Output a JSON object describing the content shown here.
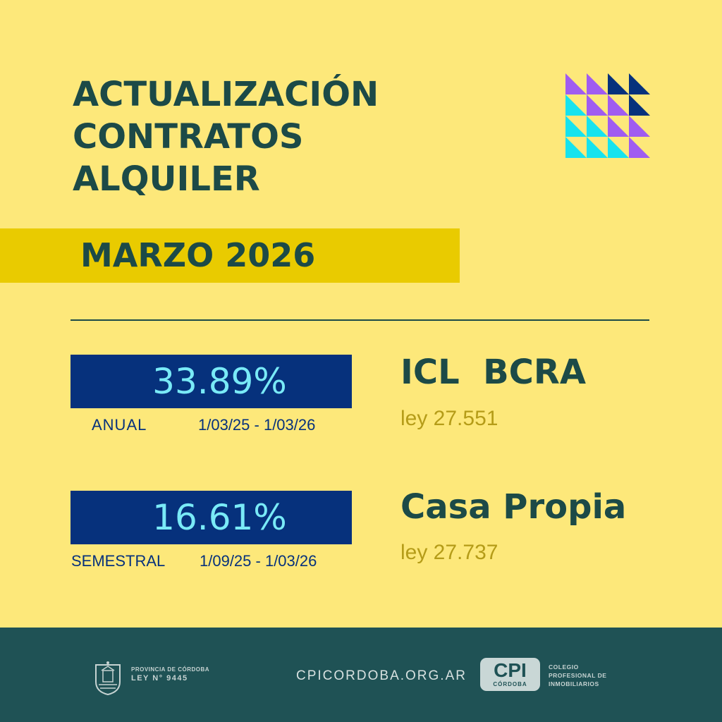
{
  "header": {
    "title_lines": [
      "ACTUALIZACIÓN",
      "CONTRATOS",
      "ALQUILER"
    ],
    "period": "MARZO 2026"
  },
  "indices": [
    {
      "rate": "33.89%",
      "period_label": "ANUAL",
      "date_range": "1/03/25 - 1/03/26",
      "name": "ICL  BCRA",
      "law": "ley 27.551"
    },
    {
      "rate": "16.61%",
      "period_label": "SEMESTRAL",
      "date_range": "1/09/25 - 1/03/26",
      "name": "Casa Propia",
      "law": "ley 27.737"
    }
  ],
  "footer": {
    "province_line1": "PROVINCIA DE CÓRDOBA",
    "province_line2": "LEY N° 9445",
    "website": "CPICORDOBA.ORG.AR",
    "logo_big": "CPI",
    "logo_small": "CÓRDOBA",
    "org_lines": [
      "COLEGIO",
      "PROFESIONAL DE",
      "INMOBILIARIOS"
    ]
  },
  "colors": {
    "background": "#fde87a",
    "dark_teal": "#1c4a47",
    "band_yellow": "#e9cb00",
    "navy": "#06317c",
    "cyan": "#79eaf7",
    "gold_text": "#b59c18",
    "purple": "#a05cf0",
    "footer": "#1f5255"
  }
}
